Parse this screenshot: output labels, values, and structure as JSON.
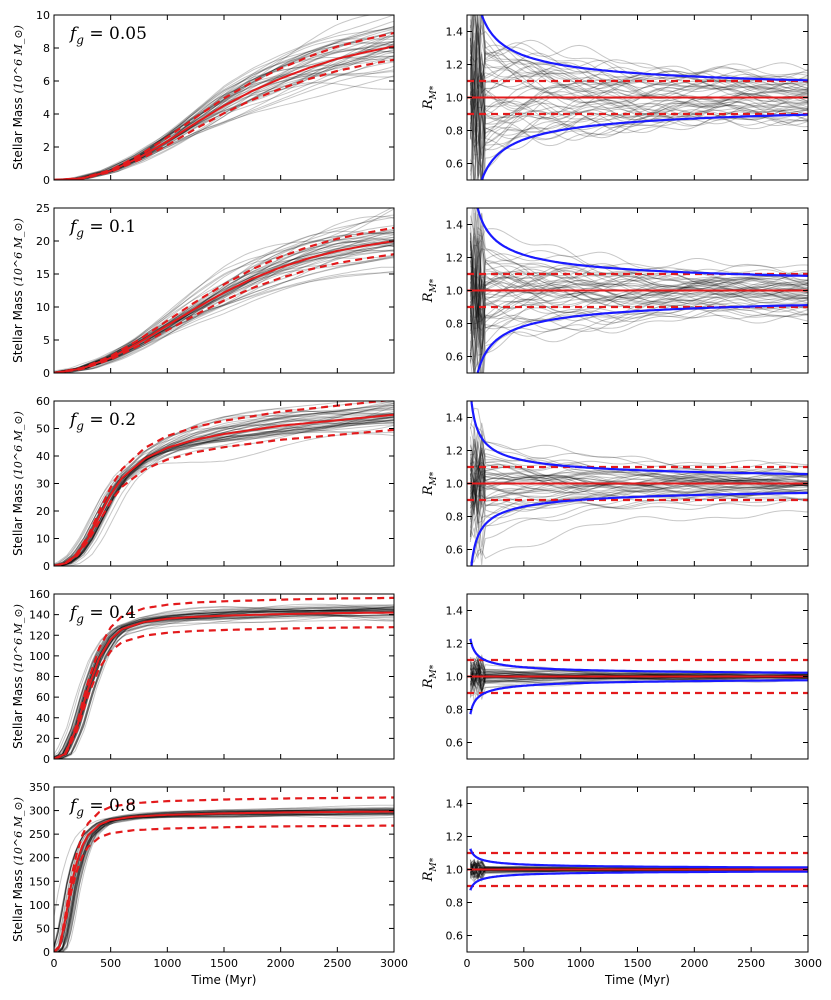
{
  "chart_data": {
    "type": "line",
    "figure_rows": 5,
    "xlabel": "Time (Myr)",
    "xlim": [
      0,
      3000
    ],
    "xticks": [
      0,
      500,
      1000,
      1500,
      2000,
      2500,
      3000
    ],
    "left_ylabel": "Stellar Mass",
    "left_ylabel_unit": "(10^6 M_⊙)",
    "right_ylabel": "R_M*",
    "right_ylim": [
      0.5,
      1.5
    ],
    "right_yticks": [
      "0.6",
      "0.8",
      "1.0",
      "1.2",
      "1.4"
    ],
    "reference_lines": {
      "mean": 1.0,
      "upper": 1.1,
      "lower": 0.9
    },
    "colors": {
      "traces": "#000000",
      "mean": "#e31a1c",
      "envelope": "#1a1aff",
      "dashed": "#e31a1c"
    },
    "panels": [
      {
        "label": "f_g = 0.05",
        "label_math": "f",
        "label_sub": "g",
        "label_value": " = 0.05",
        "ylim": [
          0,
          10
        ],
        "yticks": [
          "0",
          "2",
          "4",
          "6",
          "8",
          "10"
        ],
        "final_mass": 8.1,
        "mass_curve": {
          "x": [
            0,
            250,
            500,
            750,
            1000,
            1250,
            1500,
            1750,
            2000,
            2250,
            2500,
            2750,
            3000
          ],
          "y": [
            0,
            0.1,
            0.55,
            1.35,
            2.35,
            3.45,
            4.5,
            5.4,
            6.15,
            6.8,
            7.35,
            7.75,
            8.1
          ]
        },
        "trace_spread": 0.12,
        "ratio_scatter": 0.25,
        "envelope_amp": 1.0
      },
      {
        "label": "f_g = 0.1",
        "label_math": "f",
        "label_sub": "g",
        "label_value": " = 0.1",
        "ylim": [
          0,
          25
        ],
        "yticks": [
          "0",
          "5",
          "10",
          "15",
          "20",
          "25"
        ],
        "final_mass": 20,
        "mass_curve": {
          "x": [
            0,
            250,
            500,
            750,
            1000,
            1250,
            1500,
            1750,
            2000,
            2250,
            2500,
            2750,
            3000
          ],
          "y": [
            0,
            0.7,
            2.3,
            4.6,
            7.2,
            9.8,
            12.2,
            14.3,
            16.0,
            17.4,
            18.5,
            19.3,
            20.0
          ]
        },
        "trace_spread": 0.1,
        "ratio_scatter": 0.2,
        "envelope_amp": 0.85
      },
      {
        "label": "f_g = 0.2",
        "label_math": "f",
        "label_sub": "g",
        "label_value": " = 0.2",
        "ylim": [
          0,
          60
        ],
        "yticks": [
          "0",
          "10",
          "20",
          "30",
          "40",
          "50",
          "60"
        ],
        "final_mass": 55,
        "mass_curve": {
          "x": [
            0,
            100,
            200,
            300,
            400,
            500,
            600,
            800,
            1000,
            1250,
            1500,
            2000,
            2500,
            3000
          ],
          "y": [
            0,
            1,
            4,
            10,
            18,
            26,
            32,
            39,
            43,
            46,
            48,
            51,
            53,
            55
          ]
        },
        "trace_spread": 0.06,
        "ratio_scatter": 0.12,
        "envelope_amp": 0.55
      },
      {
        "label": "f_g = 0.4",
        "label_math": "f",
        "label_sub": "g",
        "label_value": " = 0.4",
        "ylim": [
          0,
          160
        ],
        "yticks": [
          "0",
          "20",
          "40",
          "60",
          "80",
          "100",
          "120",
          "140",
          "160"
        ],
        "final_mass": 142,
        "mass_curve": {
          "x": [
            0,
            100,
            200,
            300,
            400,
            500,
            600,
            800,
            1000,
            1250,
            1500,
            2000,
            2500,
            3000
          ],
          "y": [
            0,
            5,
            30,
            68,
            98,
            116,
            126,
            133,
            136,
            138,
            139,
            140.5,
            141.5,
            142
          ]
        },
        "trace_spread": 0.025,
        "ratio_scatter": 0.03,
        "envelope_amp": 0.22
      },
      {
        "label": "f_g = 0.8",
        "label_math": "f",
        "label_sub": "g",
        "label_value": " = 0.8",
        "ylim": [
          0,
          350
        ],
        "yticks": [
          "0",
          "50",
          "100",
          "150",
          "200",
          "250",
          "300",
          "350"
        ],
        "final_mass": 298,
        "mass_curve": {
          "x": [
            0,
            50,
            100,
            150,
            200,
            250,
            300,
            400,
            500,
            700,
            1000,
            1500,
            2000,
            3000
          ],
          "y": [
            0,
            12,
            70,
            140,
            190,
            225,
            248,
            270,
            280,
            287,
            291,
            294,
            296,
            298
          ]
        },
        "trace_spread": 0.015,
        "ratio_scatter": 0.012,
        "envelope_amp": 0.12
      }
    ]
  }
}
